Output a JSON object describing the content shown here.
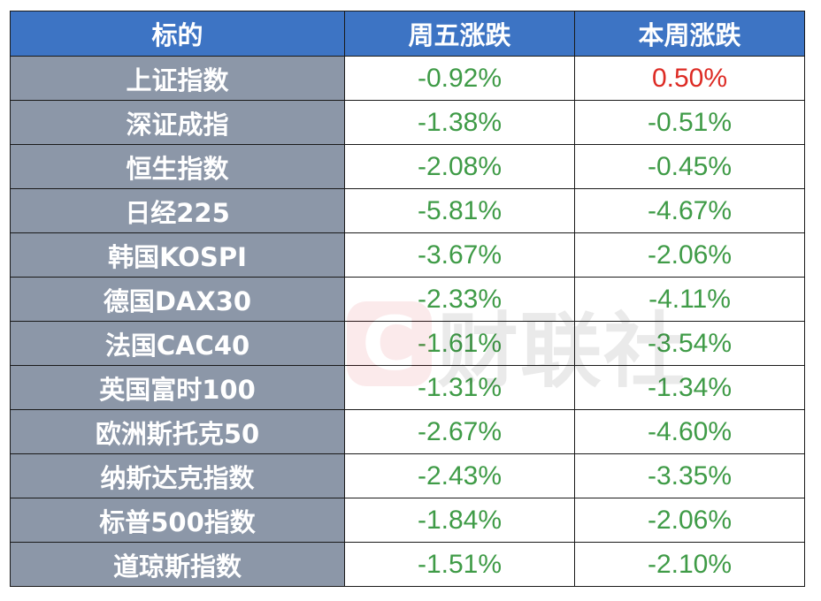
{
  "table": {
    "headers": [
      "标的",
      "周五涨跌",
      "本周涨跌"
    ],
    "rows": [
      {
        "name": "上证指数",
        "friday": "-0.92%",
        "week": "0.50%"
      },
      {
        "name": "深证成指",
        "friday": "-1.38%",
        "week": "-0.51%"
      },
      {
        "name": "恒生指数",
        "friday": "-2.08%",
        "week": "-0.45%"
      },
      {
        "name": "日经225",
        "friday": "-5.81%",
        "week": "-4.67%"
      },
      {
        "name": "韩国KOSPI",
        "friday": "-3.67%",
        "week": "-2.06%"
      },
      {
        "name": "德国DAX30",
        "friday": "-2.33%",
        "week": "-4.11%"
      },
      {
        "name": "法国CAC40",
        "friday": "-1.61%",
        "week": "-3.54%"
      },
      {
        "name": "英国富时100",
        "friday": "-1.31%",
        "week": "-1.34%"
      },
      {
        "name": "欧洲斯托克50",
        "friday": "-2.67%",
        "week": "-4.60%"
      },
      {
        "name": "纳斯达克指数",
        "friday": "-2.43%",
        "week": "-3.35%"
      },
      {
        "name": "标普500指数",
        "friday": "-1.84%",
        "week": "-2.06%"
      },
      {
        "name": "道琼斯指数",
        "friday": "-1.51%",
        "week": "-2.10%"
      }
    ]
  },
  "watermark": {
    "logo_letter": "C",
    "text": "财联社"
  },
  "colors": {
    "header_bg": "#3d74c4",
    "name_cell_bg": "#8c97a8",
    "negative": "#3f9b47",
    "positive": "#dd2b24"
  }
}
